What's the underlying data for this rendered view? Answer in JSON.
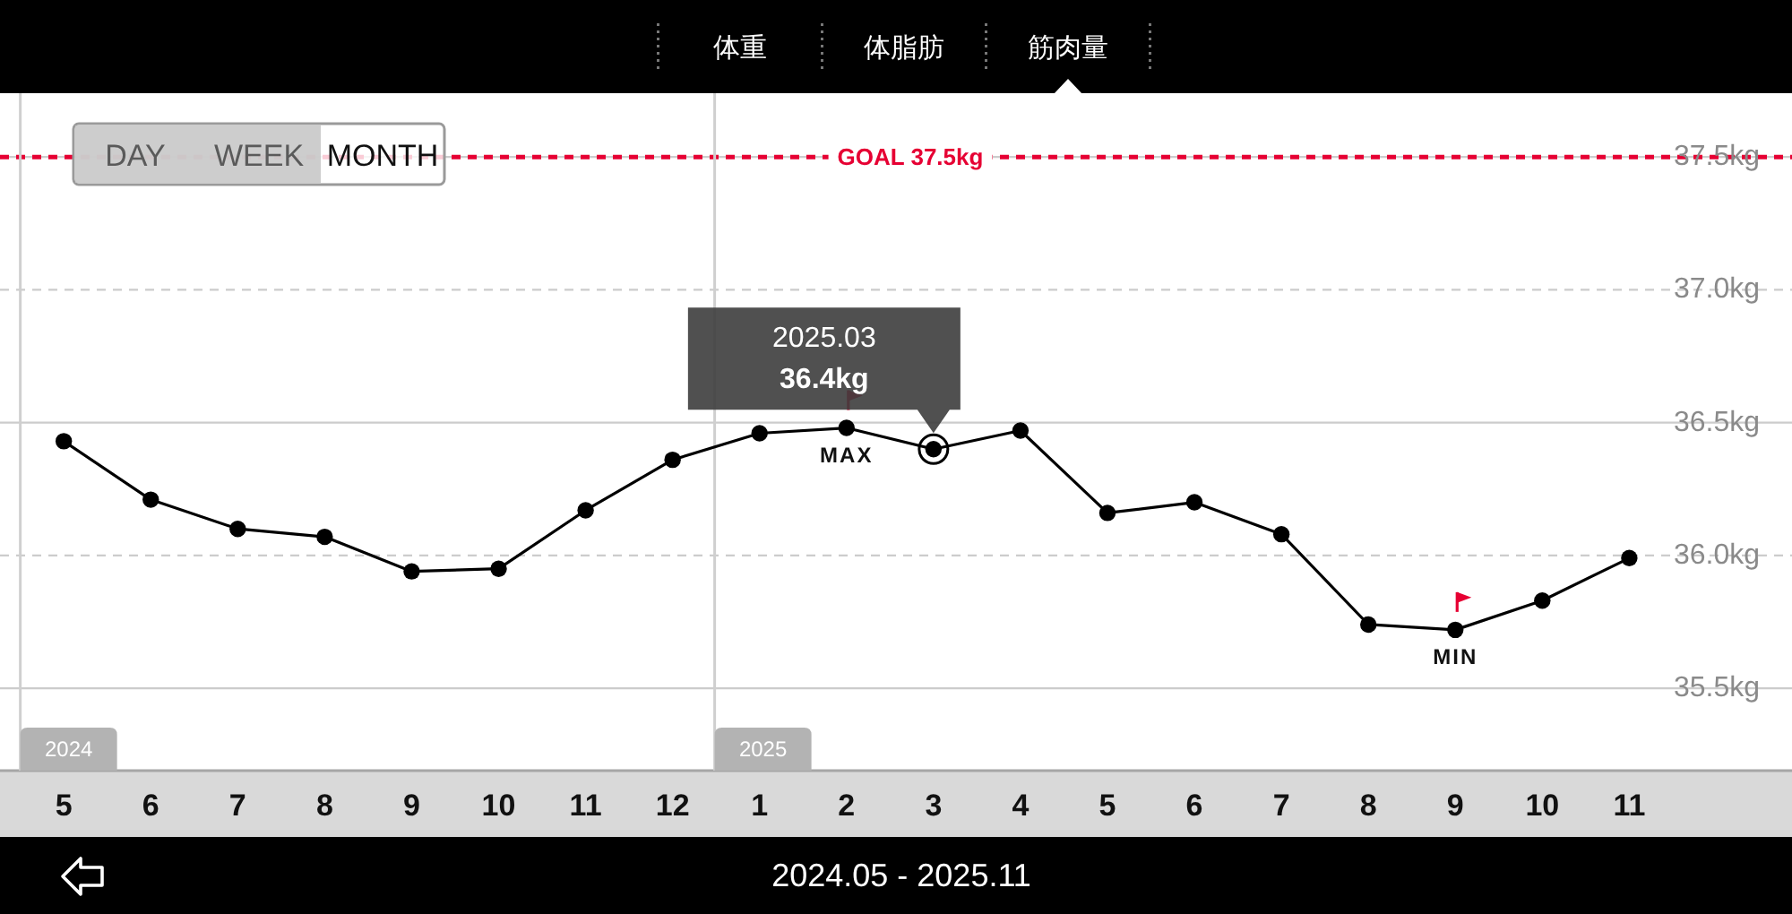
{
  "chart_data": {
    "type": "line",
    "x": [
      "2024-05",
      "2024-06",
      "2024-07",
      "2024-08",
      "2024-09",
      "2024-10",
      "2024-11",
      "2024-12",
      "2025-01",
      "2025-02",
      "2025-03",
      "2025-04",
      "2025-05",
      "2025-06",
      "2025-07",
      "2025-08",
      "2025-09",
      "2025-10",
      "2025-11"
    ],
    "values": [
      36.43,
      36.21,
      36.1,
      36.07,
      35.94,
      35.95,
      36.17,
      36.36,
      36.46,
      36.48,
      36.4,
      36.47,
      36.16,
      36.2,
      36.08,
      35.74,
      35.72,
      35.83,
      35.99
    ],
    "color": "#000000",
    "xlim": [
      "2024-04-09",
      "2025-12-28"
    ],
    "xticks": [
      {
        "value": "2024-05",
        "label": "5"
      },
      {
        "value": "2024-06",
        "label": "6"
      },
      {
        "value": "2024-07",
        "label": "7"
      },
      {
        "value": "2024-08",
        "label": "8"
      },
      {
        "value": "2024-09",
        "label": "9"
      },
      {
        "value": "2024-10",
        "label": "10"
      },
      {
        "value": "2024-11",
        "label": "11"
      },
      {
        "value": "2024-12",
        "label": "12"
      },
      {
        "value": "2025-01",
        "label": "1"
      },
      {
        "value": "2025-02",
        "label": "2"
      },
      {
        "value": "2025-03",
        "label": "3"
      },
      {
        "value": "2025-04",
        "label": "4"
      },
      {
        "value": "2025-05",
        "label": "5"
      },
      {
        "value": "2025-06",
        "label": "6"
      },
      {
        "value": "2025-07",
        "label": "7"
      },
      {
        "value": "2025-08",
        "label": "8"
      },
      {
        "value": "2025-09",
        "label": "9"
      },
      {
        "value": "2025-10",
        "label": "10"
      },
      {
        "value": "2025-11",
        "label": "11"
      }
    ],
    "ylim": [
      35.19,
      37.74
    ],
    "yticks": [
      {
        "value": 35.5,
        "label": "35.5kg"
      },
      {
        "value": 36.0,
        "label": "36.0kg"
      },
      {
        "value": 36.5,
        "label": "36.5kg"
      },
      {
        "value": 37.0,
        "label": "37.0kg"
      },
      {
        "value": 37.5,
        "label": "37.5kg"
      }
    ],
    "grid": "y",
    "marker": "circle",
    "line_style": "solid",
    "ref_lines": [
      {
        "axis": "y",
        "value": 37.5,
        "label": "GOAL 37.5kg",
        "color": "#e60033",
        "line_style": "dashed"
      },
      {
        "axis": "x",
        "value": "2024-04-16",
        "label": "2024",
        "color": "#cfcfcf",
        "line_style": "solid"
      },
      {
        "axis": "x",
        "value": "2024-12-16",
        "label": "2025",
        "color": "#cfcfcf",
        "line_style": "solid"
      }
    ],
    "annotations": [
      "体重",
      "体脂肪",
      "筋肉量",
      "DAY",
      "WEEK",
      "MONTH",
      {
        "text": "2025.03\n36.4kg",
        "x": "2025-03",
        "y": 36.4
      },
      {
        "text": "MAX",
        "x": "2025-02",
        "y": 36.48
      },
      {
        "text": "MIN",
        "x": "2025-09",
        "y": 35.72
      },
      "2024.05 - 2025.11"
    ]
  }
}
